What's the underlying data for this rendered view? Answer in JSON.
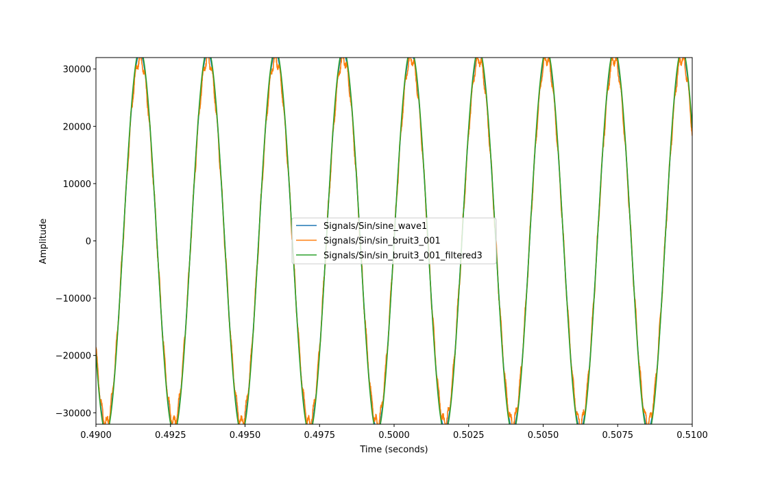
{
  "chart_data": {
    "type": "line",
    "title": "",
    "xlabel": "Time (seconds)",
    "ylabel": "Amplitude",
    "xlim": [
      0.49,
      0.51
    ],
    "ylim": [
      -32000,
      32000
    ],
    "xticks": [
      0.49,
      0.4925,
      0.495,
      0.4975,
      0.5,
      0.5025,
      0.505,
      0.5075,
      0.51
    ],
    "xtick_labels": [
      "0.4900",
      "0.4925",
      "0.4950",
      "0.4975",
      "0.5000",
      "0.5025",
      "0.5050",
      "0.5075",
      "0.5100"
    ],
    "yticks": [
      -30000,
      -20000,
      -10000,
      0,
      10000,
      20000,
      30000
    ],
    "ytick_labels": [
      "−30000",
      "−20000",
      "−10000",
      "0",
      "10000",
      "20000",
      "30000"
    ],
    "grid": false,
    "legend_position": "center",
    "signal_model": {
      "function": "sine",
      "frequency_hz": 440,
      "amplitude": 32767,
      "peak_times": [
        0.49148,
        0.49375,
        0.49602,
        0.4983,
        0.50057,
        0.50284,
        0.50511,
        0.50739,
        0.50966
      ],
      "trough_times": [
        0.49034,
        0.49261,
        0.49489,
        0.49716,
        0.49943,
        0.5017,
        0.50398,
        0.50625,
        0.50852
      ]
    },
    "series": [
      {
        "name": "Signals/Sin/sine_wave1",
        "color": "#1f77b4",
        "amplitude": 32767,
        "noise": 0
      },
      {
        "name": "Signals/Sin/sin_bruit3_001",
        "color": "#ff7f0e",
        "amplitude": 32767,
        "noise": 900
      },
      {
        "name": "Signals/Sin/sin_bruit3_001_filtered3",
        "color": "#2ca02c",
        "amplitude": 33500,
        "noise": 0
      }
    ]
  }
}
